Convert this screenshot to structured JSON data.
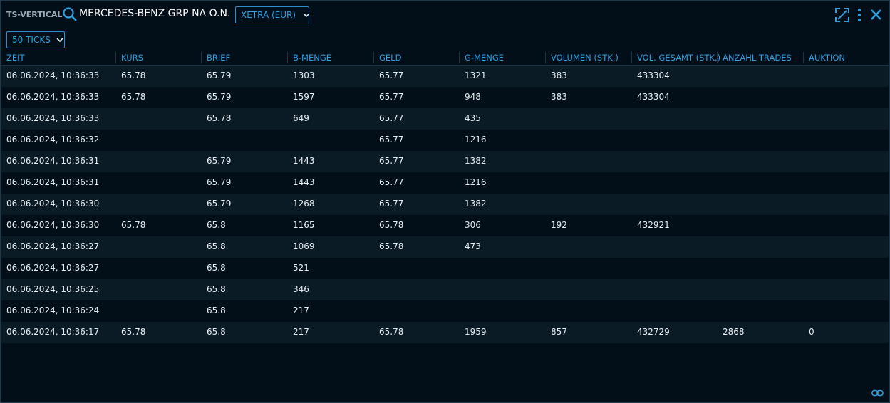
{
  "header": {
    "label": "TS-VERTICAL",
    "instrument": "MERCEDES-BENZ GRP NA O.N.",
    "exchange": "XETRA (EUR)",
    "ticks": "50 TICKS"
  },
  "table": {
    "columns": [
      "ZEIT",
      "KURS",
      "BRIEF",
      "B-MENGE",
      "GELD",
      "G-MENGE",
      "VOLUMEN (STK.)",
      "VOL. GESAMT (STK.)",
      "ANZAHL TRADES",
      "AUKTION"
    ],
    "rows": [
      [
        "06.06.2024, 10:36:33",
        "65.78",
        "65.79",
        "1303",
        "65.77",
        "1321",
        "383",
        "433304",
        null,
        null
      ],
      [
        "06.06.2024, 10:36:33",
        "65.78",
        "65.79",
        "1597",
        "65.77",
        "948",
        "383",
        "433304",
        null,
        null
      ],
      [
        "06.06.2024, 10:36:33",
        null,
        "65.78",
        "649",
        "65.77",
        "435",
        null,
        null,
        null,
        null
      ],
      [
        "06.06.2024, 10:36:32",
        null,
        null,
        null,
        "65.77",
        "1216",
        null,
        null,
        null,
        null
      ],
      [
        "06.06.2024, 10:36:31",
        null,
        "65.79",
        "1443",
        "65.77",
        "1382",
        null,
        null,
        null,
        null
      ],
      [
        "06.06.2024, 10:36:31",
        null,
        "65.79",
        "1443",
        "65.77",
        "1216",
        null,
        null,
        null,
        null
      ],
      [
        "06.06.2024, 10:36:30",
        null,
        "65.79",
        "1268",
        "65.77",
        "1382",
        null,
        null,
        null,
        null
      ],
      [
        "06.06.2024, 10:36:30",
        "65.78",
        "65.8",
        "1165",
        "65.78",
        "306",
        "192",
        "432921",
        null,
        null
      ],
      [
        "06.06.2024, 10:36:27",
        null,
        "65.8",
        "1069",
        "65.78",
        "473",
        null,
        null,
        null,
        null
      ],
      [
        "06.06.2024, 10:36:27",
        null,
        "65.8",
        "521",
        null,
        null,
        null,
        null,
        null,
        null
      ],
      [
        "06.06.2024, 10:36:25",
        null,
        "65.8",
        "346",
        null,
        null,
        null,
        null,
        null,
        null
      ],
      [
        "06.06.2024, 10:36:24",
        null,
        "65.8",
        "217",
        null,
        null,
        null,
        null,
        null,
        null
      ],
      [
        "06.06.2024, 10:36:17",
        "65.78",
        "65.8",
        "217",
        "65.78",
        "1959",
        "857",
        "432729",
        "2868",
        "0"
      ]
    ]
  }
}
